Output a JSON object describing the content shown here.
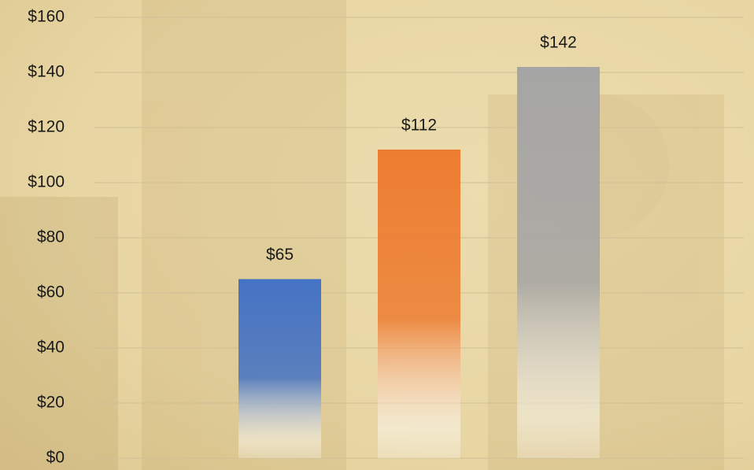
{
  "chart_data": {
    "type": "bar",
    "categories": [
      null,
      null,
      null
    ],
    "values": [
      65,
      112,
      142
    ],
    "value_labels": [
      "$65",
      "$112",
      "$142"
    ],
    "colors": [
      "#4472c4",
      "#ed7d31",
      "#a5a5a5"
    ],
    "ylim": [
      0,
      160
    ],
    "yticks": [
      {
        "value": 0,
        "label": "$0"
      },
      {
        "value": 20,
        "label": "$20"
      },
      {
        "value": 40,
        "label": "$40"
      },
      {
        "value": 60,
        "label": "$60"
      },
      {
        "value": 80,
        "label": "$80"
      },
      {
        "value": 100,
        "label": "$100"
      },
      {
        "value": 120,
        "label": "$120"
      },
      {
        "value": 140,
        "label": "$140"
      },
      {
        "value": 160,
        "label": "$160"
      }
    ],
    "grid": true
  }
}
